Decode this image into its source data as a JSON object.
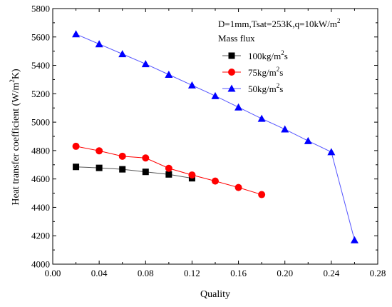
{
  "chart_data": {
    "type": "line",
    "title": "",
    "xlabel": "Quality",
    "ylabel": "Heat transfer coefficient (W/m2K)",
    "xlim": [
      0.0,
      0.28
    ],
    "ylim": [
      4000,
      5800
    ],
    "x_ticks": [
      0.0,
      0.04,
      0.08,
      0.12,
      0.16,
      0.2,
      0.24,
      0.28
    ],
    "x_tick_labels": [
      "0.00",
      "0.04",
      "0.08",
      "0.12",
      "0.16",
      "0.20",
      "0.24",
      "0.28"
    ],
    "y_ticks": [
      4000,
      4200,
      4400,
      4600,
      4800,
      5000,
      5200,
      5400,
      5600,
      5800
    ],
    "y_tick_labels": [
      "4000",
      "4200",
      "4400",
      "4600",
      "4800",
      "5000",
      "5200",
      "5400",
      "5600",
      "5800"
    ],
    "grid": false,
    "legend_position": "top-right",
    "legend_header_line1": "D=1mm,Tsat=253K,q=10kW/m2",
    "legend_header_line2": "Mass flux",
    "series": [
      {
        "name": "100kg/m2s",
        "marker": "square",
        "color": "#000000",
        "line_color": "#555555",
        "x": [
          0.02,
          0.04,
          0.06,
          0.08,
          0.1,
          0.12
        ],
        "y": [
          4685,
          4678,
          4668,
          4650,
          4632,
          4605
        ]
      },
      {
        "name": "75kg/m2s",
        "marker": "circle",
        "color": "#ff0000",
        "line_color": "#ff0000",
        "x": [
          0.02,
          0.04,
          0.06,
          0.08,
          0.1,
          0.12,
          0.14,
          0.16,
          0.18
        ],
        "y": [
          4830,
          4798,
          4760,
          4748,
          4675,
          4628,
          4585,
          4540,
          4490
        ]
      },
      {
        "name": "50kg/m2s",
        "marker": "triangle",
        "color": "#0000ff",
        "line_color": "#5555ff",
        "x": [
          0.02,
          0.04,
          0.06,
          0.08,
          0.1,
          0.12,
          0.14,
          0.16,
          0.18,
          0.2,
          0.22,
          0.24,
          0.26
        ],
        "y": [
          5620,
          5550,
          5480,
          5410,
          5335,
          5260,
          5185,
          5105,
          5025,
          4950,
          4868,
          4790,
          4170
        ]
      }
    ]
  }
}
